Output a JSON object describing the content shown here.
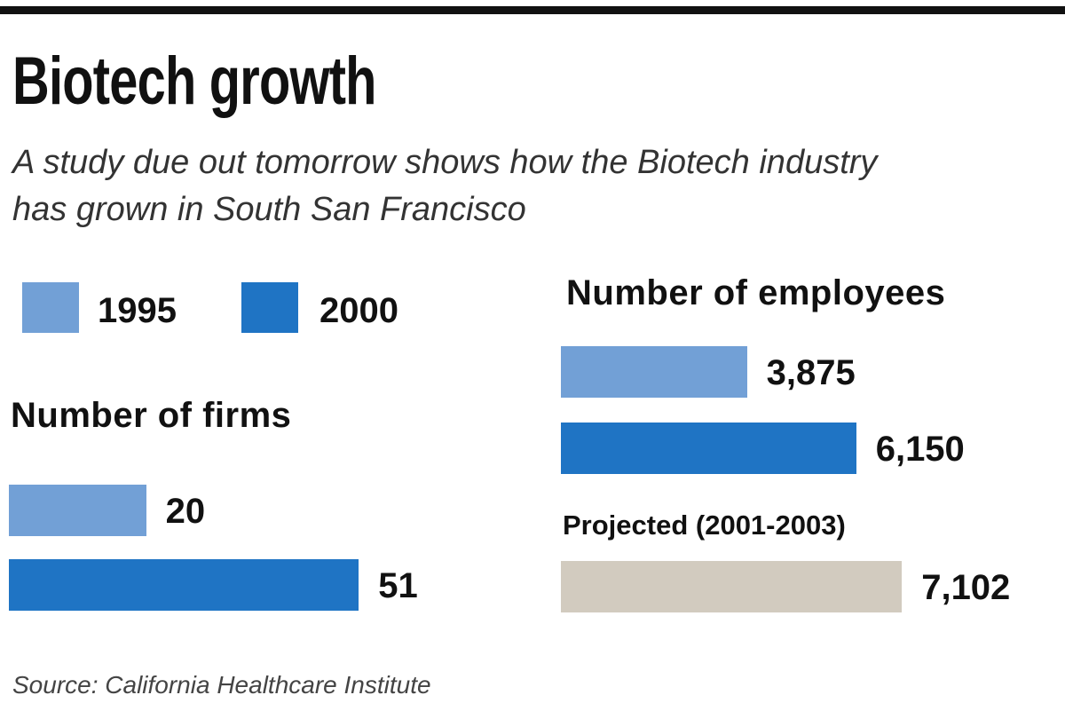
{
  "chart_data": [
    {
      "type": "bar",
      "orientation": "horizontal",
      "title": "Number of firms",
      "categories": [
        "1995",
        "2000"
      ],
      "values": [
        20,
        51
      ],
      "value_labels": [
        "20",
        "51"
      ],
      "colors": [
        "#72a0d6",
        "#1f74c4"
      ]
    },
    {
      "type": "bar",
      "orientation": "horizontal",
      "title": "Number of employees",
      "categories": [
        "1995",
        "2000",
        "Projected (2001-2003)"
      ],
      "values": [
        3875,
        6150,
        7102
      ],
      "value_labels": [
        "3,875",
        "6,150",
        "7,102"
      ],
      "colors": [
        "#72a0d6",
        "#1f74c4",
        "#d2cbbf"
      ]
    }
  ],
  "header": {
    "title": "Biotech growth",
    "subtitle_line1": "A study due out tomorrow shows how the Biotech industry",
    "subtitle_line2": "has grown in South San Francisco"
  },
  "legend": [
    {
      "label": "1995",
      "color": "#72a0d6"
    },
    {
      "label": "2000",
      "color": "#1f74c4"
    }
  ],
  "projected_label": "Projected (2001-2003)",
  "source": "Source: California Healthcare Institute"
}
